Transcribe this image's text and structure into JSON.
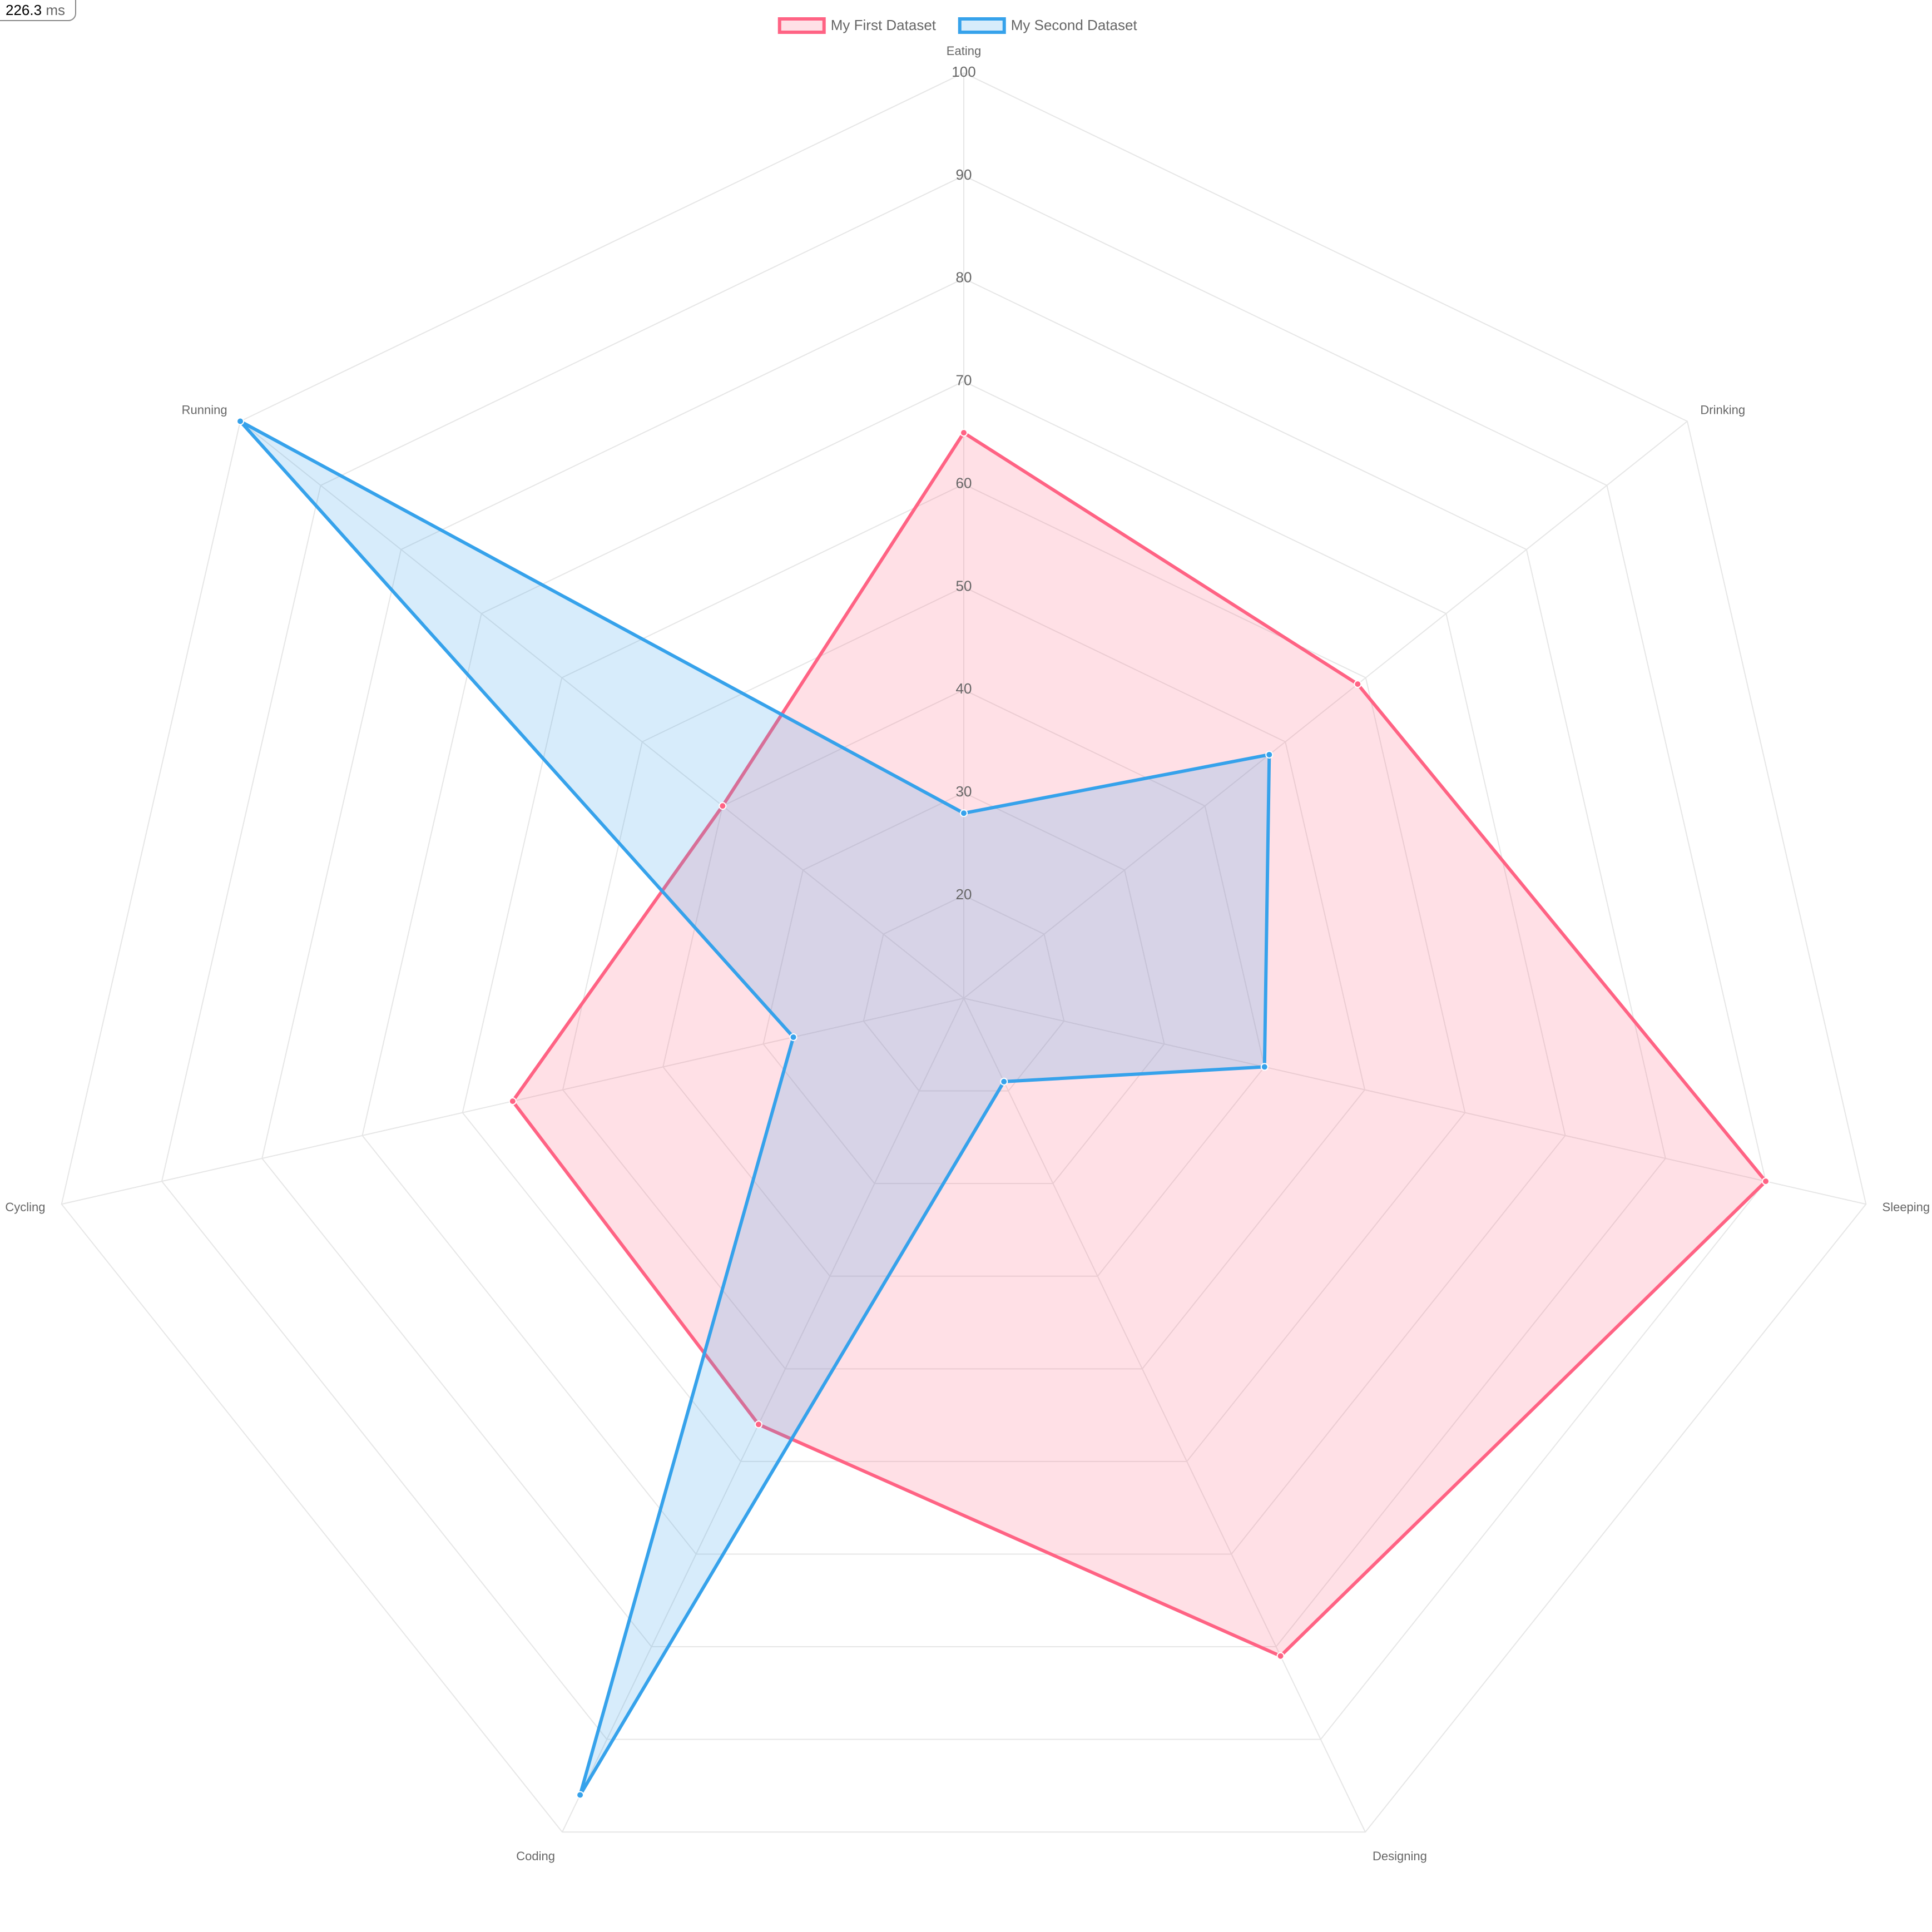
{
  "timing": {
    "value": "226.3",
    "unit": "ms"
  },
  "chart_data": {
    "type": "radar",
    "categories": [
      "Eating",
      "Drinking",
      "Sleeping",
      "Designing",
      "Coding",
      "Cycling",
      "Running"
    ],
    "series": [
      {
        "name": "My First Dataset",
        "color": "#ff6384",
        "fill": "rgba(255,99,132,0.2)",
        "values": [
          65,
          59,
          90,
          81,
          56,
          55,
          40
        ]
      },
      {
        "name": "My Second Dataset",
        "color": "#36a2eb",
        "fill": "rgba(54,162,235,0.2)",
        "values": [
          28,
          48,
          40,
          19,
          96,
          27,
          100
        ]
      }
    ],
    "rlim": [
      10,
      100
    ],
    "rticks": [
      20,
      30,
      40,
      50,
      60,
      70,
      80,
      90,
      100
    ],
    "grid": true,
    "legend": "top"
  }
}
